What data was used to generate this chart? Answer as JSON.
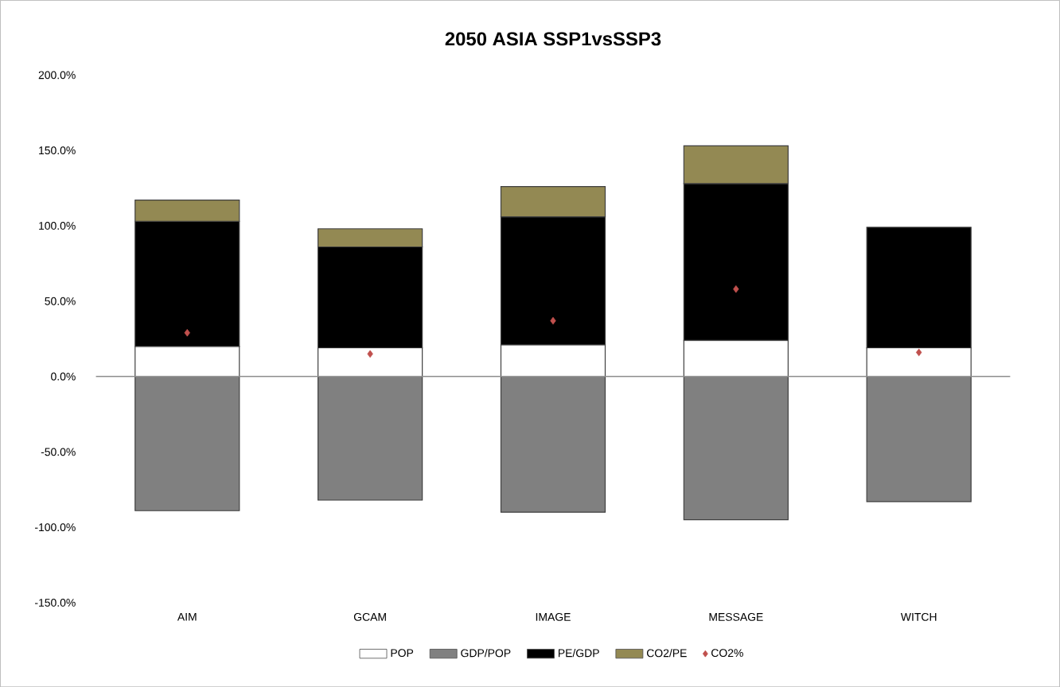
{
  "chart_data": {
    "type": "bar",
    "title": "2050 ASIA SSP1vsSSP3",
    "stacked": true,
    "legend": "bottom",
    "categories": [
      "AIM",
      "GCAM",
      "IMAGE",
      "MESSAGE",
      "WITCH"
    ],
    "ylim": [
      -150,
      200
    ],
    "yticks": [
      {
        "value": -150,
        "label": "-150.0%"
      },
      {
        "value": -100,
        "label": "-100.0%"
      },
      {
        "value": -50,
        "label": "-50.0%"
      },
      {
        "value": 0,
        "label": "0.0%"
      },
      {
        "value": 50,
        "label": "50.0%"
      },
      {
        "value": 100,
        "label": "100.0%"
      },
      {
        "value": 150,
        "label": "150.0%"
      },
      {
        "value": 200,
        "label": "200.0%"
      }
    ],
    "series": [
      {
        "name": "POP",
        "color": "#ffffff",
        "values": [
          20,
          19,
          21,
          24,
          19
        ]
      },
      {
        "name": "GDP/POP",
        "color": "#808080",
        "values": [
          -89,
          -82,
          -90,
          -95,
          -83
        ]
      },
      {
        "name": "PE/GDP",
        "color": "#000000",
        "values": [
          83,
          67,
          85,
          104,
          80
        ]
      },
      {
        "name": "CO2/PE",
        "color": "#938953",
        "values": [
          14,
          12,
          20,
          25,
          null
        ]
      },
      {
        "name": "CO2%",
        "type": "scatter",
        "marker": "diamond",
        "color": "#c0504d",
        "values": [
          29,
          15,
          37,
          58,
          16
        ]
      }
    ]
  }
}
